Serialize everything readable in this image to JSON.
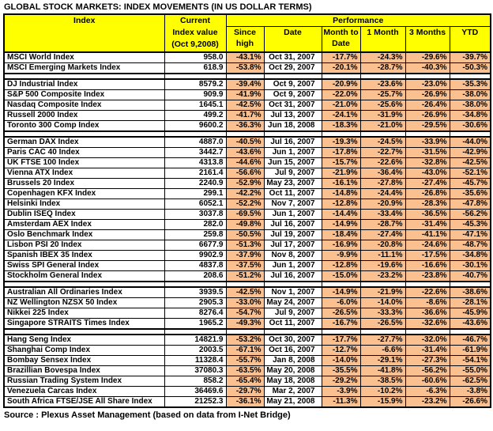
{
  "title": "GLOBAL STOCK MARKETS: INDEX MOVEMENTS (IN US DOLLAR TERMS)",
  "source": "Source : Plexus Asset Management (based on data from I-Net Bridge)",
  "colors": {
    "header_bg": "#FFFF00",
    "performance_cell_bg": "#FAC090",
    "cell_bg": "#FFFFFF",
    "border": "#000000",
    "text": "#000000",
    "page_bg": "#FFFFFF"
  },
  "chart_data": {
    "type": "table",
    "title": "GLOBAL STOCK MARKETS: INDEX MOVEMENTS (IN US DOLLAR TERMS)",
    "headers": {
      "index": "Index",
      "current_lines": [
        "Current",
        "Index value",
        "(Oct 9,2008)"
      ],
      "performance": "Performance",
      "sub_lines": [
        [
          "Since",
          "high"
        ],
        [
          "Date"
        ],
        [
          "Month to",
          "Date"
        ],
        [
          "1 Month"
        ],
        [
          "3 Months"
        ],
        [
          "YTD"
        ]
      ]
    },
    "column_keys": [
      "index",
      "current_value",
      "since_high",
      "date",
      "month_to_date",
      "one_month",
      "three_months",
      "ytd"
    ],
    "rows": [
      [
        "MSCI World Index",
        "958.0",
        "-43.1%",
        "Oct 31, 2007",
        "-17.7%",
        "-24.3%",
        "-29.6%",
        "-39.7%"
      ],
      [
        "MSCI Emerging Markets Index",
        "618.9",
        "-53.8%",
        "Oct 29, 2007",
        "-20.1%",
        "-28.7%",
        "-40.3%",
        "-50.3%"
      ],
      null,
      [
        "DJ Industrial Index",
        "8579.2",
        "-39.4%",
        "Oct 9, 2007",
        "-20.9%",
        "-23.6%",
        "-23.0%",
        "-35.3%"
      ],
      [
        "S&P 500 Composite Index",
        "909.9",
        "-41.9%",
        "Oct 9, 2007",
        "-22.0%",
        "-25.7%",
        "-26.9%",
        "-38.0%"
      ],
      [
        "Nasdaq Composite Index",
        "1645.1",
        "-42.5%",
        "Oct 31, 2007",
        "-21.0%",
        "-25.6%",
        "-26.4%",
        "-38.0%"
      ],
      [
        "Russell 2000 Index",
        "499.2",
        "-41.7%",
        "Jul 13, 2007",
        "-24.1%",
        "-31.9%",
        "-26.9%",
        "-34.8%"
      ],
      [
        "Toronto 300 Comp Index",
        "9600.2",
        "-36.3%",
        "Jun 18, 2008",
        "-18.3%",
        "-21.0%",
        "-29.5%",
        "-30.6%"
      ],
      null,
      [
        "German DAX Index",
        "4887.0",
        "-40.5%",
        "Jul 16, 2007",
        "-19.3%",
        "-24.5%",
        "-33.9%",
        "-44.0%"
      ],
      [
        "Paris CAC 40 Index",
        "3442.7",
        "-43.6%",
        "Jun 1, 2007",
        "-17.8%",
        "-22.7%",
        "-31.5%",
        "-42.9%"
      ],
      [
        "UK FTSE 100 Index",
        "4313.8",
        "-44.6%",
        "Jun 15, 2007",
        "-15.7%",
        "-22.6%",
        "-32.8%",
        "-42.5%"
      ],
      [
        "Vienna ATX Index",
        "2161.4",
        "-56.6%",
        "Jul 9, 2007",
        "-21.9%",
        "-36.4%",
        "-43.0%",
        "-52.1%"
      ],
      [
        "Brussels 20 Index",
        "2240.9",
        "-52.9%",
        "May 23, 2007",
        "-16.1%",
        "-27.8%",
        "-27.4%",
        "-45.7%"
      ],
      [
        "Copenhagen KFX Index",
        "299.1",
        "-42.2%",
        "Oct 11, 2007",
        "-14.8%",
        "-24.4%",
        "-26.8%",
        "-35.6%"
      ],
      [
        "Helsinki Index",
        "6052.1",
        "-52.2%",
        "Nov 7, 2007",
        "-12.8%",
        "-20.9%",
        "-28.3%",
        "-47.8%"
      ],
      [
        "Dublin ISEQ Index",
        "3037.8",
        "-69.5%",
        "Jun 1, 2007",
        "-14.4%",
        "-33.4%",
        "-36.5%",
        "-56.2%"
      ],
      [
        "Amsterdam AEX Index",
        "282.0",
        "-49.8%",
        "Jul 16, 2007",
        "-14.9%",
        "-28.7%",
        "-31.4%",
        "-45.3%"
      ],
      [
        "Oslo Benchmark Index",
        "259.8",
        "-50.5%",
        "Jul 19, 2007",
        "-18.4%",
        "-27.4%",
        "-41.1%",
        "-47.1%"
      ],
      [
        "Lisbon PSI 20 Index",
        "6677.9",
        "-51.3%",
        "Jul 17, 2007",
        "-16.9%",
        "-20.8%",
        "-24.6%",
        "-48.7%"
      ],
      [
        "Spanish IBEX 35 Index",
        "9902.9",
        "-37.9%",
        "Nov 8, 2007",
        "-9.9%",
        "-11.1%",
        "-17.5%",
        "-34.8%"
      ],
      [
        "Swiss SPI General Index",
        "4837.8",
        "-37.5%",
        "Jun 1, 2007",
        "-12.8%",
        "-19.6%",
        "-16.6%",
        "-30.1%"
      ],
      [
        "Stockholm General Index",
        "208.6",
        "-51.2%",
        "Jul 16, 2007",
        "-15.0%",
        "-23.2%",
        "-23.8%",
        "-40.7%"
      ],
      null,
      [
        "Australian All Ordinaries Index",
        "3939.5",
        "-42.5%",
        "Nov 1, 2007",
        "-14.9%",
        "-21.9%",
        "-22.6%",
        "-38.6%"
      ],
      [
        "NZ Wellington NZSX 50 Index",
        "2905.3",
        "-33.0%",
        "May 24, 2007",
        "-6.0%",
        "-14.0%",
        "-8.6%",
        "-28.1%"
      ],
      [
        "Nikkei 225 Index",
        "8276.4",
        "-54.7%",
        "Jul 9, 2007",
        "-26.5%",
        "-33.3%",
        "-36.6%",
        "-45.9%"
      ],
      [
        "Singapore STRAITS Times Index",
        "1965.2",
        "-49.3%",
        "Oct 11, 2007",
        "-16.7%",
        "-26.5%",
        "-32.6%",
        "-43.6%"
      ],
      null,
      [
        "Hang Seng Index",
        "14821.9",
        "-53.2%",
        "Oct 30, 2007",
        "-17.7%",
        "-27.7%",
        "-32.0%",
        "-46.7%"
      ],
      [
        "Shanghai Comp Index",
        "2003.5",
        "-67.1%",
        "Oct 16, 2007",
        "-12.7%",
        "-6.6%",
        "-31.4%",
        "-61.9%"
      ],
      [
        "Bombay Sensex Index",
        "11328.4",
        "-55.7%",
        "Jan 8, 2008",
        "-14.0%",
        "-29.1%",
        "-27.3%",
        "-54.1%"
      ],
      [
        "Brazillian Bovespa Index",
        "37080.3",
        "-63.5%",
        "May 20, 2008",
        "-35.5%",
        "-41.8%",
        "-56.2%",
        "-55.0%"
      ],
      [
        "Russian Trading System Index",
        "858.2",
        "-65.4%",
        "May 18, 2008",
        "-29.2%",
        "-38.5%",
        "-60.6%",
        "-62.5%"
      ],
      [
        "Venezuela Carcas Index",
        "36469.6",
        "-29.7%",
        "Mar 2, 2007",
        "-3.9%",
        "-10.2%",
        "-6.3%",
        "-3.8%"
      ],
      [
        "South Africa FTSE/JSE All Share Index",
        "21252.3",
        "-36.1%",
        "May 21, 2008",
        "-11.3%",
        "-15.9%",
        "-23.2%",
        "-26.6%"
      ]
    ]
  }
}
